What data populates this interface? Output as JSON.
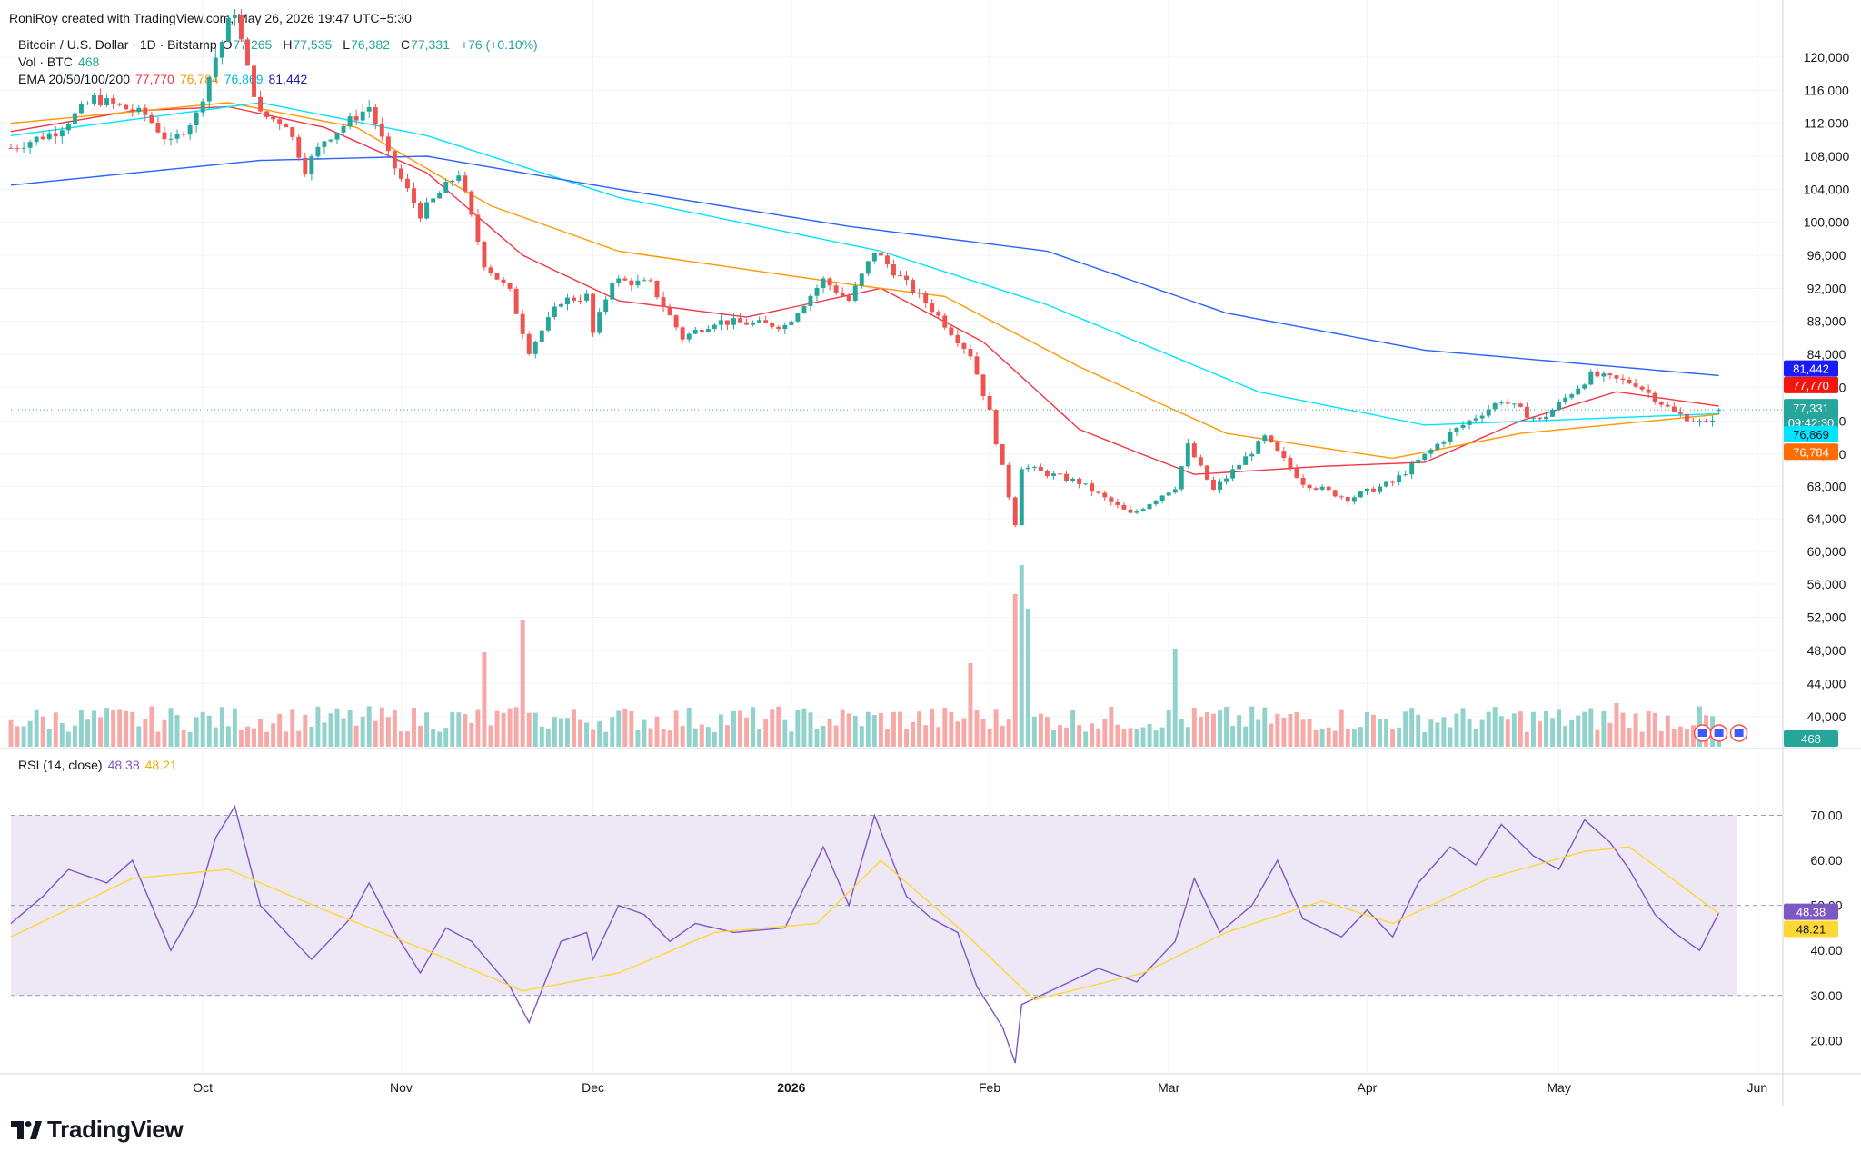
{
  "header": {
    "credit": "RoniRoy created with TradingView.com, May 26, 2026 19:47 UTC+5:30",
    "symbol_title": "Bitcoin / U.S. Dollar · 1D · Bitstamp",
    "ohlc": {
      "open_label": "O",
      "open": "77,265",
      "high_label": "H",
      "high": "77,535",
      "low_label": "L",
      "low": "76,382",
      "close_label": "C",
      "close": "77,331",
      "change": "+76 (+0.10%)"
    },
    "volume": {
      "label": "Vol · BTC",
      "value": "468"
    },
    "ema": {
      "label": "EMA 20/50/100/200",
      "ema20": "77,770",
      "ema50": "76,784",
      "ema100": "76,869",
      "ema200": "81,442"
    },
    "rsi": {
      "label": "RSI (14, close)",
      "rsi": "48.38",
      "rsi_ma": "48.21"
    }
  },
  "price_axis": {
    "labels": [
      "120,000",
      "116,000",
      "112,000",
      "108,000",
      "104,000",
      "100,000",
      "96,000",
      "92,000",
      "88,000",
      "84,000",
      "80,000",
      "76,000",
      "72,000",
      "68,000",
      "64,000",
      "60,000",
      "56,000",
      "52,000",
      "48,000",
      "44,000",
      "40,000"
    ],
    "badges": {
      "ema200": "81,442",
      "ema20": "77,770",
      "price": "77,331",
      "countdown": "09:42:30",
      "ema100": "76,869",
      "ema50": "76,784",
      "volume": "468"
    }
  },
  "rsi_axis": {
    "labels": [
      "70.00",
      "60.00",
      "50.00",
      "40.00",
      "30.00",
      "20.00"
    ],
    "badges": {
      "rsi": "48.38",
      "rsi_ma": "48.21"
    }
  },
  "time_axis": {
    "labels": [
      "Oct",
      "Nov",
      "Dec",
      "2026",
      "Feb",
      "Mar",
      "Apr",
      "May",
      "Jun"
    ]
  },
  "colors": {
    "up": "#26a69a",
    "down": "#ef5350",
    "vol_up": "#92d2cc",
    "vol_down": "#f7a9a7",
    "ema20": "#f23645",
    "ema50": "#ff9800",
    "ema100": "#00e5ff",
    "ema200": "#2962ff",
    "rsi": "#7e57c2",
    "rsi_ma": "#fdd835",
    "rsi_band": "#ede7f6"
  },
  "brand": {
    "name": "TradingView"
  },
  "chart_data": [
    {
      "type": "candlestick",
      "title": "Bitcoin / U.S. Dollar · 1D · Bitstamp",
      "x_range": [
        "2025-09-01",
        "2026-06-05"
      ],
      "ylim": [
        38000,
        124000
      ],
      "grid": true,
      "y_axis_side": "right",
      "anchors_close": [
        [
          "2025-09-01",
          109000
        ],
        [
          "2025-09-08",
          111000
        ],
        [
          "2025-09-14",
          115000
        ],
        [
          "2025-09-22",
          113000
        ],
        [
          "2025-09-26",
          109500
        ],
        [
          "2025-09-30",
          113000
        ],
        [
          "2025-10-03",
          120000
        ],
        [
          "2025-10-06",
          124000
        ],
        [
          "2025-10-10",
          113000
        ],
        [
          "2025-10-14",
          112000
        ],
        [
          "2025-10-17",
          106500
        ],
        [
          "2025-10-20",
          110000
        ],
        [
          "2025-10-27",
          114000
        ],
        [
          "2025-10-30",
          108000
        ],
        [
          "2025-11-04",
          101000
        ],
        [
          "2025-11-10",
          106000
        ],
        [
          "2025-11-14",
          95000
        ],
        [
          "2025-11-18",
          91500
        ],
        [
          "2025-11-21",
          84500
        ],
        [
          "2025-11-26",
          90500
        ],
        [
          "2025-11-30",
          91000
        ],
        [
          "2025-12-01",
          86500
        ],
        [
          "2025-12-04",
          93000
        ],
        [
          "2025-12-10",
          92500
        ],
        [
          "2025-12-15",
          86000
        ],
        [
          "2025-12-20",
          88000
        ],
        [
          "2025-12-31",
          87500
        ],
        [
          "2026-01-06",
          93000
        ],
        [
          "2026-01-10",
          90500
        ],
        [
          "2026-01-14",
          96500
        ],
        [
          "2026-01-19",
          92500
        ],
        [
          "2026-01-23",
          89500
        ],
        [
          "2026-01-29",
          84000
        ],
        [
          "2026-02-01",
          77000
        ],
        [
          "2026-02-05",
          63500
        ],
        [
          "2026-02-06",
          70500
        ],
        [
          "2026-02-15",
          68500
        ],
        [
          "2026-02-23",
          64500
        ],
        [
          "2026-03-02",
          68000
        ],
        [
          "2026-03-04",
          73000
        ],
        [
          "2026-03-08",
          67500
        ],
        [
          "2026-03-16",
          74000
        ],
        [
          "2026-03-22",
          68500
        ],
        [
          "2026-03-29",
          66500
        ],
        [
          "2026-04-05",
          68500
        ],
        [
          "2026-04-14",
          74500
        ],
        [
          "2026-04-22",
          78500
        ],
        [
          "2026-04-28",
          76000
        ],
        [
          "2026-05-06",
          81500
        ],
        [
          "2026-05-13",
          80500
        ],
        [
          "2026-05-19",
          77000
        ],
        [
          "2026-05-24",
          75500
        ],
        [
          "2026-05-26",
          77331
        ]
      ],
      "last_bar": {
        "date": "2026-05-26",
        "open": 77265,
        "high": 77535,
        "low": 76382,
        "close": 77331
      },
      "series": [
        {
          "name": "EMA 20",
          "type": "line",
          "last": 77770,
          "points": [
            [
              "2025-09-01",
              111000
            ],
            [
              "2025-09-20",
              113500
            ],
            [
              "2025-10-05",
              114000
            ],
            [
              "2025-10-20",
              111500
            ],
            [
              "2025-11-05",
              106000
            ],
            [
              "2025-11-20",
              96000
            ],
            [
              "2025-12-05",
              90500
            ],
            [
              "2025-12-25",
              88500
            ],
            [
              "2026-01-15",
              92000
            ],
            [
              "2026-01-31",
              85500
            ],
            [
              "2026-02-15",
              75000
            ],
            [
              "2026-03-05",
              69500
            ],
            [
              "2026-03-25",
              70500
            ],
            [
              "2026-04-10",
              71000
            ],
            [
              "2026-04-25",
              76000
            ],
            [
              "2026-05-10",
              79500
            ],
            [
              "2026-05-26",
              77770
            ]
          ]
        },
        {
          "name": "EMA 50",
          "type": "line",
          "last": 76784,
          "points": [
            [
              "2025-09-01",
              112000
            ],
            [
              "2025-10-05",
              114500
            ],
            [
              "2025-10-25",
              111500
            ],
            [
              "2025-11-15",
              102000
            ],
            [
              "2025-12-05",
              96500
            ],
            [
              "2026-01-10",
              92500
            ],
            [
              "2026-01-25",
              91000
            ],
            [
              "2026-02-15",
              82500
            ],
            [
              "2026-03-10",
              74500
            ],
            [
              "2026-04-05",
              71500
            ],
            [
              "2026-04-25",
              74500
            ],
            [
              "2026-05-26",
              76784
            ]
          ]
        },
        {
          "name": "EMA 100",
          "type": "line",
          "last": 76869,
          "points": [
            [
              "2025-09-01",
              110500
            ],
            [
              "2025-10-10",
              114500
            ],
            [
              "2025-11-05",
              110500
            ],
            [
              "2025-12-05",
              103000
            ],
            [
              "2026-01-15",
              96500
            ],
            [
              "2026-02-10",
              90000
            ],
            [
              "2026-03-15",
              79500
            ],
            [
              "2026-04-10",
              75500
            ],
            [
              "2026-05-26",
              76869
            ]
          ]
        },
        {
          "name": "EMA 200",
          "type": "line",
          "last": 81442,
          "points": [
            [
              "2025-09-01",
              104500
            ],
            [
              "2025-10-10",
              107500
            ],
            [
              "2025-11-05",
              108000
            ],
            [
              "2025-12-05",
              104000
            ],
            [
              "2026-01-10",
              99500
            ],
            [
              "2026-02-10",
              96500
            ],
            [
              "2026-03-10",
              89000
            ],
            [
              "2026-04-10",
              84500
            ],
            [
              "2026-05-26",
              81442
            ]
          ]
        }
      ]
    },
    {
      "type": "bar",
      "title": "Vol · BTC",
      "last": 468,
      "description_scale": "volume in BTC, relative heights",
      "ylim": [
        0,
        5000
      ],
      "spikes": [
        [
          "2025-11-20",
          3500
        ],
        [
          "2025-11-14",
          2600
        ],
        [
          "2026-02-06",
          5000
        ],
        [
          "2026-02-05",
          4200
        ],
        [
          "2026-02-07",
          3800
        ],
        [
          "2026-03-02",
          2700
        ],
        [
          "2026-01-29",
          2300
        ],
        [
          "2026-05-10",
          1200
        ]
      ],
      "typical": 800
    },
    {
      "type": "line",
      "title": "RSI (14, close)",
      "ylim": [
        13,
        80
      ],
      "bands": [
        30,
        50,
        70
      ],
      "series": [
        {
          "name": "RSI",
          "last": 48.38,
          "points": [
            [
              "2025-09-01",
              46
            ],
            [
              "2025-09-06",
              52
            ],
            [
              "2025-09-10",
              58
            ],
            [
              "2025-09-16",
              55
            ],
            [
              "2025-09-20",
              60
            ],
            [
              "2025-09-26",
              40
            ],
            [
              "2025-09-30",
              50
            ],
            [
              "2025-10-03",
              65
            ],
            [
              "2025-10-06",
              72
            ],
            [
              "2025-10-10",
              50
            ],
            [
              "2025-10-14",
              44
            ],
            [
              "2025-10-18",
              38
            ],
            [
              "2025-10-24",
              47
            ],
            [
              "2025-10-27",
              55
            ],
            [
              "2025-10-31",
              44
            ],
            [
              "2025-11-04",
              35
            ],
            [
              "2025-11-08",
              45
            ],
            [
              "2025-11-12",
              42
            ],
            [
              "2025-11-18",
              32
            ],
            [
              "2025-11-21",
              24
            ],
            [
              "2025-11-26",
              42
            ],
            [
              "2025-11-30",
              44
            ],
            [
              "2025-12-01",
              38
            ],
            [
              "2025-12-05",
              50
            ],
            [
              "2025-12-09",
              48
            ],
            [
              "2025-12-13",
              42
            ],
            [
              "2025-12-17",
              46
            ],
            [
              "2025-12-23",
              44
            ],
            [
              "2025-12-31",
              45
            ],
            [
              "2026-01-06",
              63
            ],
            [
              "2026-01-10",
              50
            ],
            [
              "2026-01-14",
              70
            ],
            [
              "2026-01-19",
              52
            ],
            [
              "2026-01-23",
              47
            ],
            [
              "2026-01-27",
              44
            ],
            [
              "2026-01-30",
              32
            ],
            [
              "2026-02-03",
              23
            ],
            [
              "2026-02-05",
              15
            ],
            [
              "2026-02-06",
              28
            ],
            [
              "2026-02-12",
              32
            ],
            [
              "2026-02-18",
              36
            ],
            [
              "2026-02-24",
              33
            ],
            [
              "2026-03-02",
              42
            ],
            [
              "2026-03-05",
              56
            ],
            [
              "2026-03-09",
              44
            ],
            [
              "2026-03-14",
              50
            ],
            [
              "2026-03-18",
              60
            ],
            [
              "2026-03-22",
              47
            ],
            [
              "2026-03-28",
              43
            ],
            [
              "2026-04-01",
              49
            ],
            [
              "2026-04-05",
              43
            ],
            [
              "2026-04-09",
              55
            ],
            [
              "2026-04-14",
              63
            ],
            [
              "2026-04-18",
              59
            ],
            [
              "2026-04-22",
              68
            ],
            [
              "2026-04-27",
              61
            ],
            [
              "2026-05-01",
              58
            ],
            [
              "2026-05-05",
              69
            ],
            [
              "2026-05-09",
              64
            ],
            [
              "2026-05-12",
              58
            ],
            [
              "2026-05-16",
              48
            ],
            [
              "2026-05-19",
              44
            ],
            [
              "2026-05-23",
              40
            ],
            [
              "2026-05-26",
              48.38
            ]
          ]
        },
        {
          "name": "RSI-based MA",
          "last": 48.21,
          "points": [
            [
              "2025-09-01",
              43
            ],
            [
              "2025-09-20",
              56
            ],
            [
              "2025-10-05",
              58
            ],
            [
              "2025-10-20",
              49
            ],
            [
              "2025-11-05",
              40
            ],
            [
              "2025-11-20",
              31
            ],
            [
              "2025-12-05",
              35
            ],
            [
              "2025-12-20",
              44
            ],
            [
              "2026-01-05",
              46
            ],
            [
              "2026-01-15",
              60
            ],
            [
              "2026-01-28",
              44
            ],
            [
              "2026-02-08",
              29
            ],
            [
              "2026-02-25",
              35
            ],
            [
              "2026-03-10",
              44
            ],
            [
              "2026-03-25",
              51
            ],
            [
              "2026-04-05",
              46
            ],
            [
              "2026-04-20",
              56
            ],
            [
              "2026-05-05",
              62
            ],
            [
              "2026-05-12",
              63
            ],
            [
              "2026-05-26",
              48.21
            ]
          ]
        }
      ]
    }
  ]
}
